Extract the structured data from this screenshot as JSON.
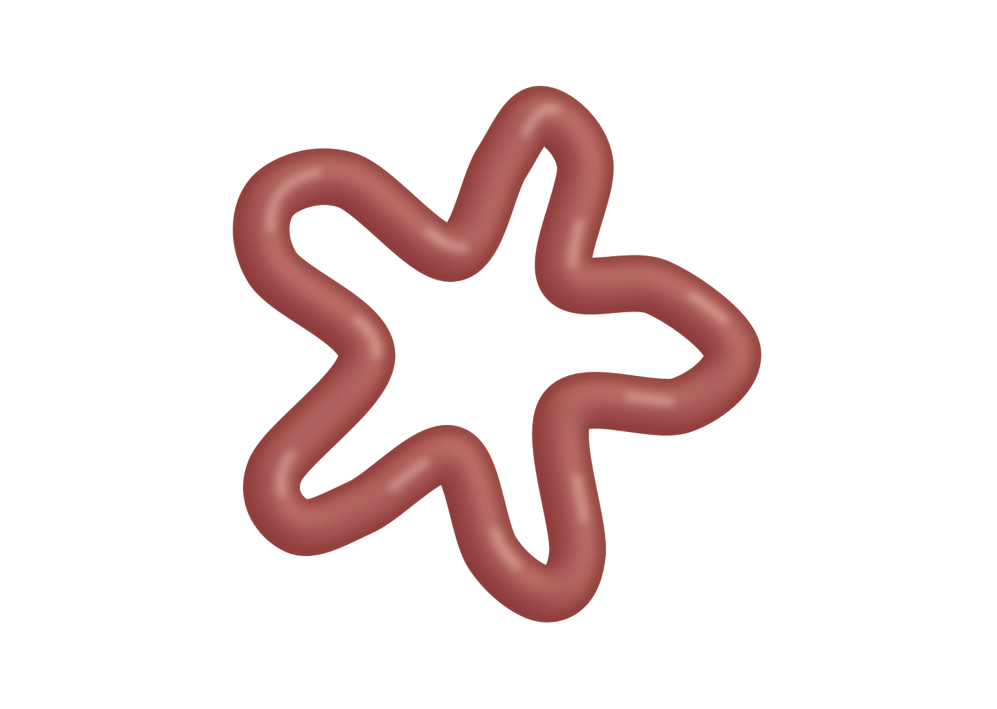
{
  "shape": {
    "name": "star-flower-tube",
    "icon": "five-petal-star-ring",
    "lobes": 5,
    "colors": {
      "background": "#ffffff",
      "base": "#a85048",
      "dark": "#5e1f24",
      "deep": "#7a2838",
      "mid": "#b55f56",
      "light": "#cf8b80",
      "highlight": "#ecc0b4"
    }
  }
}
